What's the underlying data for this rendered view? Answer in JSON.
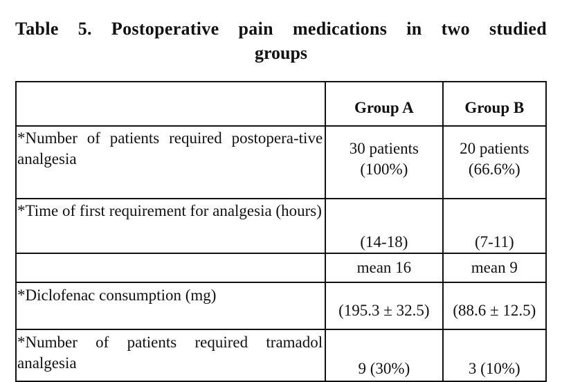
{
  "title": {
    "line1": "Table 5. Postoperative pain medications in two studied",
    "line2": "groups"
  },
  "table": {
    "headers": [
      "",
      "Group A",
      "Group B"
    ],
    "rows": [
      {
        "label": "*Number of patients required postopera-tive analgesia",
        "group_a": [
          "30 patients",
          "(100%)"
        ],
        "group_b": [
          "20 patients",
          "(66.6%)"
        ]
      },
      {
        "label": "*Time of first requirement for analgesia (hours)",
        "group_a": "(14-18)",
        "group_b": "(7-11)"
      },
      {
        "label": "",
        "group_a": "mean 16",
        "group_b": "mean 9"
      },
      {
        "label": "*Diclofenac consumption (mg)",
        "group_a": "(195.3 ± 32.5)",
        "group_b": "(88.6 ± 12.5)"
      },
      {
        "label": "*Number of patients required tramadol analgesia",
        "group_a": "9 (30%)",
        "group_b": "3 (10%)"
      }
    ]
  }
}
